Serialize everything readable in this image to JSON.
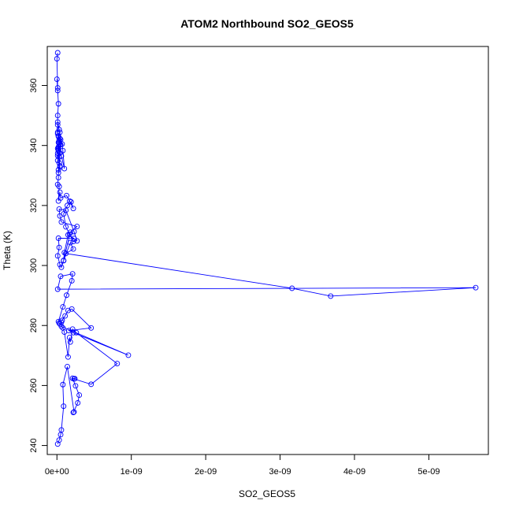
{
  "chart_data": {
    "type": "line",
    "title": "ATOM2 Northbound SO2_GEOS5",
    "xlabel": "SO2_GEOS5",
    "ylabel": "Theta (K)",
    "xlim": [
      -1.3e-10,
      5.8e-09
    ],
    "ylim": [
      237,
      373
    ],
    "x_ticks": [
      0,
      1e-09,
      2e-09,
      3e-09,
      4e-09,
      5e-09
    ],
    "x_tick_labels": [
      "0e+00",
      "1e-09",
      "2e-09",
      "3e-09",
      "4e-09",
      "5e-09"
    ],
    "y_ticks": [
      240,
      260,
      280,
      300,
      320,
      340,
      360
    ],
    "y_tick_labels": [
      "240",
      "260",
      "280",
      "300",
      "320",
      "340",
      "360"
    ],
    "grid": false,
    "legend": "none",
    "color": "#0000ff",
    "marker": "open-circle",
    "series": [
      {
        "x": [
          1e-11,
          3e-11,
          5e-11,
          6e-11,
          9e-11,
          8e-11,
          1.4e-10,
          2.3e-10,
          2.2e-10,
          2.8e-10,
          3e-10,
          2.5e-10,
          2.1e-10,
          2.4e-10,
          2.3e-10,
          4.6e-10,
          8.1e-10,
          2.6e-10,
          2.1e-10,
          1.8e-10,
          1.7e-10,
          1.5e-10,
          1e-10,
          8e-11,
          6e-11,
          9.6e-10,
          2.2e-10,
          1.6e-10,
          4.6e-10,
          2e-10,
          1.5e-10,
          1.1e-10,
          7e-11,
          6e-11,
          4e-11,
          3e-11,
          2e-11,
          8e-11,
          1.3e-10,
          2e-10,
          2.1e-10,
          5e-11,
          1e-11,
          5.63e-09,
          3.68e-09,
          3.16e-09,
          1.2e-10,
          2.2e-10,
          1.8e-10,
          9e-11,
          6e-11,
          4e-11,
          1e-11,
          3e-11,
          2e-11,
          2.3e-10,
          1.5e-10,
          1e-10,
          9e-11,
          1.8e-10,
          2.7e-10,
          6e-11,
          4e-11,
          3e-11,
          1.2e-10,
          2.3e-10,
          2.7e-10,
          2.2e-10,
          1.7e-10,
          1.2e-10,
          9e-11,
          1.4e-10,
          1.9e-10,
          2.2e-10,
          1.7e-10,
          1.3e-10,
          5e-11,
          4e-11,
          2e-11,
          3e-11,
          1e-11,
          2e-11,
          2e-11,
          4e-11,
          1e-11,
          1e-11,
          2e-11,
          5e-11,
          3e-11,
          4e-11,
          2e-11,
          3e-11,
          1e-11,
          2e-11,
          2e-11,
          4e-11,
          3e-11,
          1e-11,
          5e-11,
          7e-11,
          8e-11,
          1e-10,
          6e-11,
          4e-11,
          2e-11,
          3e-11,
          1e-11,
          4e-11,
          3e-11,
          2e-11,
          1e-11,
          2e-11,
          3e-11,
          2e-11,
          1e-11,
          1e-11,
          1e-11,
          2e-11,
          1e-11,
          0,
          1e-11,
          0,
          1e-11
        ],
        "y": [
          240.5,
          241.8,
          243.6,
          245.2,
          253.1,
          260.3,
          266.3,
          251.2,
          251.0,
          254.2,
          256.8,
          259.9,
          262.4,
          262.3,
          262.2,
          260.4,
          267.3,
          277.6,
          278.8,
          274.5,
          276.0,
          269.5,
          277.8,
          279.2,
          279.7,
          270.1,
          277.6,
          278.3,
          279.2,
          285.5,
          285.0,
          283.2,
          281.7,
          281.1,
          280.5,
          280.8,
          281.3,
          286.2,
          290.1,
          294.9,
          297.2,
          296.4,
          292.1,
          292.6,
          289.8,
          292.4,
          304.0,
          305.5,
          307.6,
          301.6,
          299.4,
          300.3,
          303.2,
          306.0,
          309.1,
          309.0,
          310.2,
          304.3,
          301.7,
          311.1,
          313.0,
          314.5,
          316.5,
          318.8,
          318.4,
          311.3,
          308.2,
          308.0,
          310.4,
          312.9,
          317.2,
          320.0,
          321.2,
          319.0,
          321.5,
          323.3,
          322.5,
          324.4,
          321.5,
          326.3,
          327.0,
          329.3,
          331.9,
          333.2,
          335.0,
          337.4,
          338.5,
          340.3,
          336.2,
          332.8,
          330.9,
          334.2,
          339.0,
          341.0,
          343.0,
          344.4,
          345.3,
          347.8,
          342.0,
          340.5,
          338.3,
          332.3,
          336.5,
          337.5,
          339.5,
          341.8,
          343.9,
          342.3,
          340.6,
          338.2,
          336.6,
          338.9,
          341.1,
          343.2,
          344.4,
          346.9,
          350.0,
          353.9,
          358.3,
          362.1,
          359.2,
          368.9,
          370.9
        ]
      }
    ]
  }
}
